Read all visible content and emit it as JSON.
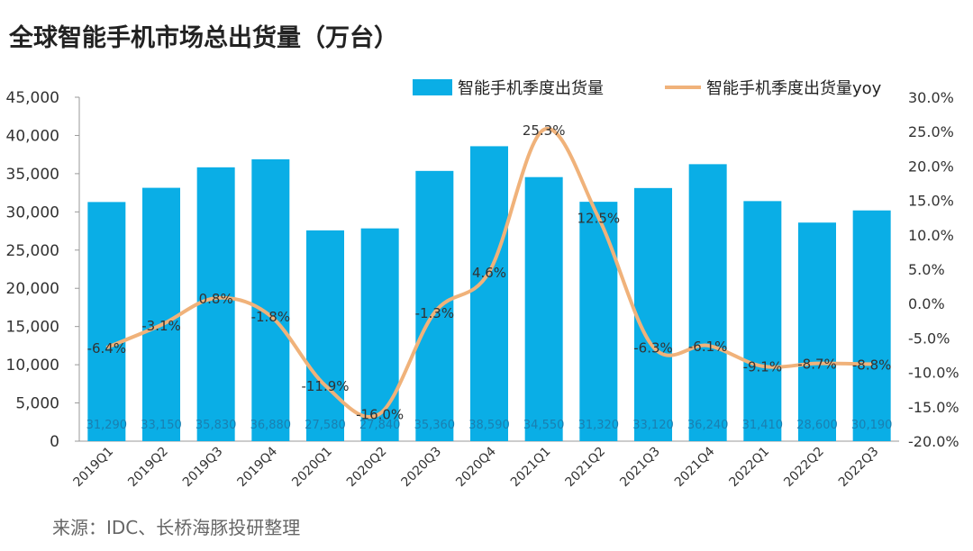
{
  "chart_data": {
    "type": "bar+line",
    "title": "全球智能手机市场总出货量（万台）",
    "source": "来源：IDC、长桥海豚投研整理",
    "categories": [
      "2019Q1",
      "2019Q2",
      "2019Q3",
      "2019Q4",
      "2020Q1",
      "2020Q2",
      "2020Q3",
      "2020Q4",
      "2021Q1",
      "2021Q2",
      "2021Q3",
      "2021Q4",
      "2022Q1",
      "2022Q2",
      "2022Q3"
    ],
    "series": [
      {
        "name": "智能手机季度出货量",
        "type": "bar",
        "axis": "left",
        "color": "#0AAEE6",
        "values": [
          31290,
          33150,
          35830,
          36880,
          27580,
          27840,
          35360,
          38590,
          34550,
          31320,
          33120,
          36240,
          31410,
          28600,
          30190
        ],
        "labels": [
          "31,290",
          "33,150",
          "35,830",
          "36,880",
          "27,580",
          "27,840",
          "35,360",
          "38,590",
          "34,550",
          "31,320",
          "33,120",
          "36,240",
          "31,410",
          "28,600",
          "30,190"
        ]
      },
      {
        "name": "智能手机季度出货量yoy",
        "type": "line",
        "axis": "right",
        "color": "#F0B27A",
        "values": [
          -6.4,
          -3.1,
          0.8,
          -1.8,
          -11.9,
          -16.0,
          -1.3,
          4.6,
          25.3,
          12.5,
          -6.3,
          -6.1,
          -9.1,
          -8.7,
          -8.8
        ],
        "labels": [
          "-6.4%",
          "-3.1%",
          "0.8%",
          "-1.8%",
          "-11.9%",
          "-16.0%",
          "-1.3%",
          "4.6%",
          "25.3%",
          "12.5%",
          "-6.3%",
          "-6.1%",
          "-9.1%",
          "-8.7%",
          "-8.8%"
        ]
      }
    ],
    "ylim": [
      0,
      45000
    ],
    "y2lim": [
      -20,
      30
    ],
    "yticks": [
      "0",
      "5,000",
      "10,000",
      "15,000",
      "20,000",
      "25,000",
      "30,000",
      "35,000",
      "40,000",
      "45,000"
    ],
    "y2ticks": [
      "-20.0%",
      "-15.0%",
      "-10.0%",
      "-5.0%",
      "0.0%",
      "5.0%",
      "10.0%",
      "15.0%",
      "20.0%",
      "25.0%",
      "30.0%"
    ],
    "legend": "top-right"
  }
}
